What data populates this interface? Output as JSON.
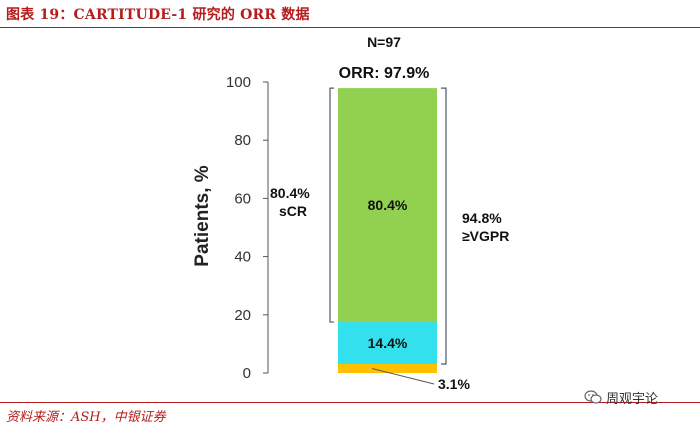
{
  "figure_title": "图表 19：CARTITUDE-1 研究的 ORR 数据",
  "source": "资料来源：ASH，中银证券",
  "watermark": {
    "text": "周观宇论",
    "icon": "wechat-icon"
  },
  "colors": {
    "scr": "#92d050",
    "vgpr_only": "#33e0ee",
    "pr": "#ffc000",
    "bracket": "#4a5a6a",
    "rule": "#b71c1c"
  },
  "chart_data": {
    "type": "bar",
    "stacked": true,
    "ylabel": "Patients, %",
    "ylim": [
      0,
      100
    ],
    "yticks": [
      0,
      20,
      40,
      60,
      80,
      100
    ],
    "grid": false,
    "categories": [
      ""
    ],
    "series": [
      {
        "values": [
          3.1
        ],
        "label": "3.1%"
      },
      {
        "values": [
          14.4
        ],
        "label": "14.4%"
      },
      {
        "values": [
          80.4
        ],
        "label": "80.4%"
      }
    ],
    "annotations": {
      "n": "N=97",
      "orr": "ORR: 97.9%",
      "scr_value": "80.4%",
      "scr_name": "sCR",
      "vgpr_value": "94.8%",
      "vgpr_name": "≥VGPR"
    }
  }
}
